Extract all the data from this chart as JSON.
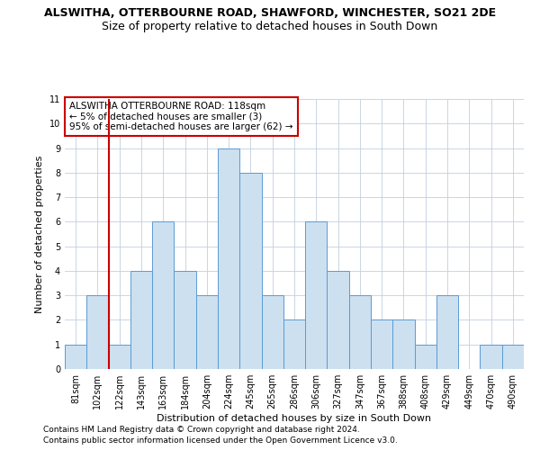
{
  "title1": "ALSWITHA, OTTERBOURNE ROAD, SHAWFORD, WINCHESTER, SO21 2DE",
  "title2": "Size of property relative to detached houses in South Down",
  "xlabel": "Distribution of detached houses by size in South Down",
  "ylabel": "Number of detached properties",
  "footer1": "Contains HM Land Registry data © Crown copyright and database right 2024.",
  "footer2": "Contains public sector information licensed under the Open Government Licence v3.0.",
  "categories": [
    "81sqm",
    "102sqm",
    "122sqm",
    "143sqm",
    "163sqm",
    "184sqm",
    "204sqm",
    "224sqm",
    "245sqm",
    "265sqm",
    "286sqm",
    "306sqm",
    "327sqm",
    "347sqm",
    "367sqm",
    "388sqm",
    "408sqm",
    "429sqm",
    "449sqm",
    "470sqm",
    "490sqm"
  ],
  "values": [
    1,
    3,
    1,
    4,
    6,
    4,
    3,
    9,
    8,
    3,
    2,
    6,
    4,
    3,
    2,
    2,
    1,
    3,
    0,
    1,
    1
  ],
  "bar_color": "#cce0f0",
  "bar_edge_color": "#5b9bd5",
  "grid_color": "#c0d0e0",
  "vline_x_index": 2,
  "vline_color": "#cc0000",
  "annotation_title": "ALSWITHA OTTERBOURNE ROAD: 118sqm",
  "annotation_line1": "← 5% of detached houses are smaller (3)",
  "annotation_line2": "95% of semi-detached houses are larger (62) →",
  "annotation_box_color": "#cc0000",
  "ylim": [
    0,
    11
  ],
  "yticks": [
    0,
    1,
    2,
    3,
    4,
    5,
    6,
    7,
    8,
    9,
    10,
    11
  ],
  "background_color": "#ffffff",
  "title1_fontsize": 9,
  "title2_fontsize": 9,
  "ylabel_fontsize": 8,
  "xlabel_fontsize": 8,
  "tick_fontsize": 7,
  "footer_fontsize": 6.5,
  "ann_fontsize": 7.5
}
